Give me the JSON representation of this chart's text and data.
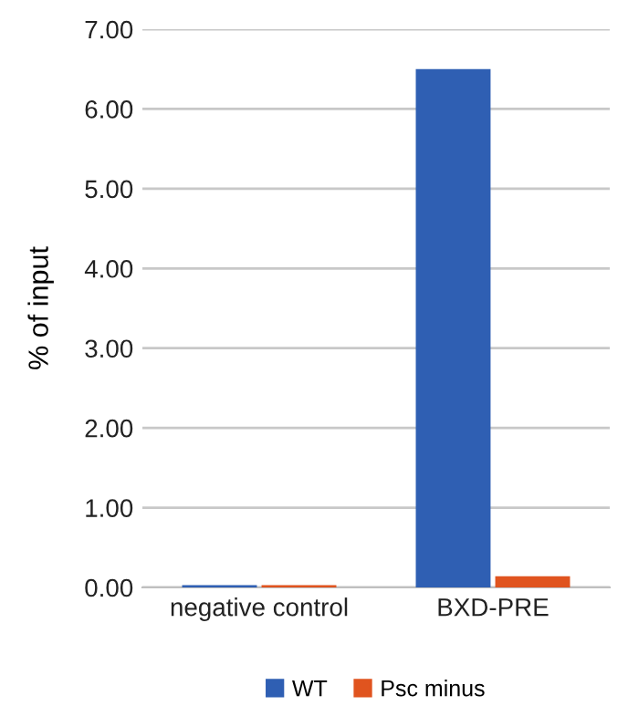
{
  "chart_data": {
    "type": "bar",
    "ylabel": "% of input",
    "categories": [
      "negative control",
      "BXD-PRE"
    ],
    "series": [
      {
        "name": "WT",
        "color": "#2f5fb3",
        "values": [
          0.03,
          6.5
        ]
      },
      {
        "name": "Psc minus",
        "color": "#e0541f",
        "values": [
          0.03,
          0.14
        ]
      }
    ],
    "ylim": [
      0,
      7
    ],
    "yticks": [
      {
        "value": 0,
        "label": "0.00"
      },
      {
        "value": 1,
        "label": "1.00"
      },
      {
        "value": 2,
        "label": "2.00"
      },
      {
        "value": 3,
        "label": "3.00"
      },
      {
        "value": 4,
        "label": "4.00"
      },
      {
        "value": 5,
        "label": "5.00"
      },
      {
        "value": 6,
        "label": "6.00"
      },
      {
        "value": 7,
        "label": "7.00"
      }
    ],
    "grid": "y",
    "legend": "bottom"
  }
}
